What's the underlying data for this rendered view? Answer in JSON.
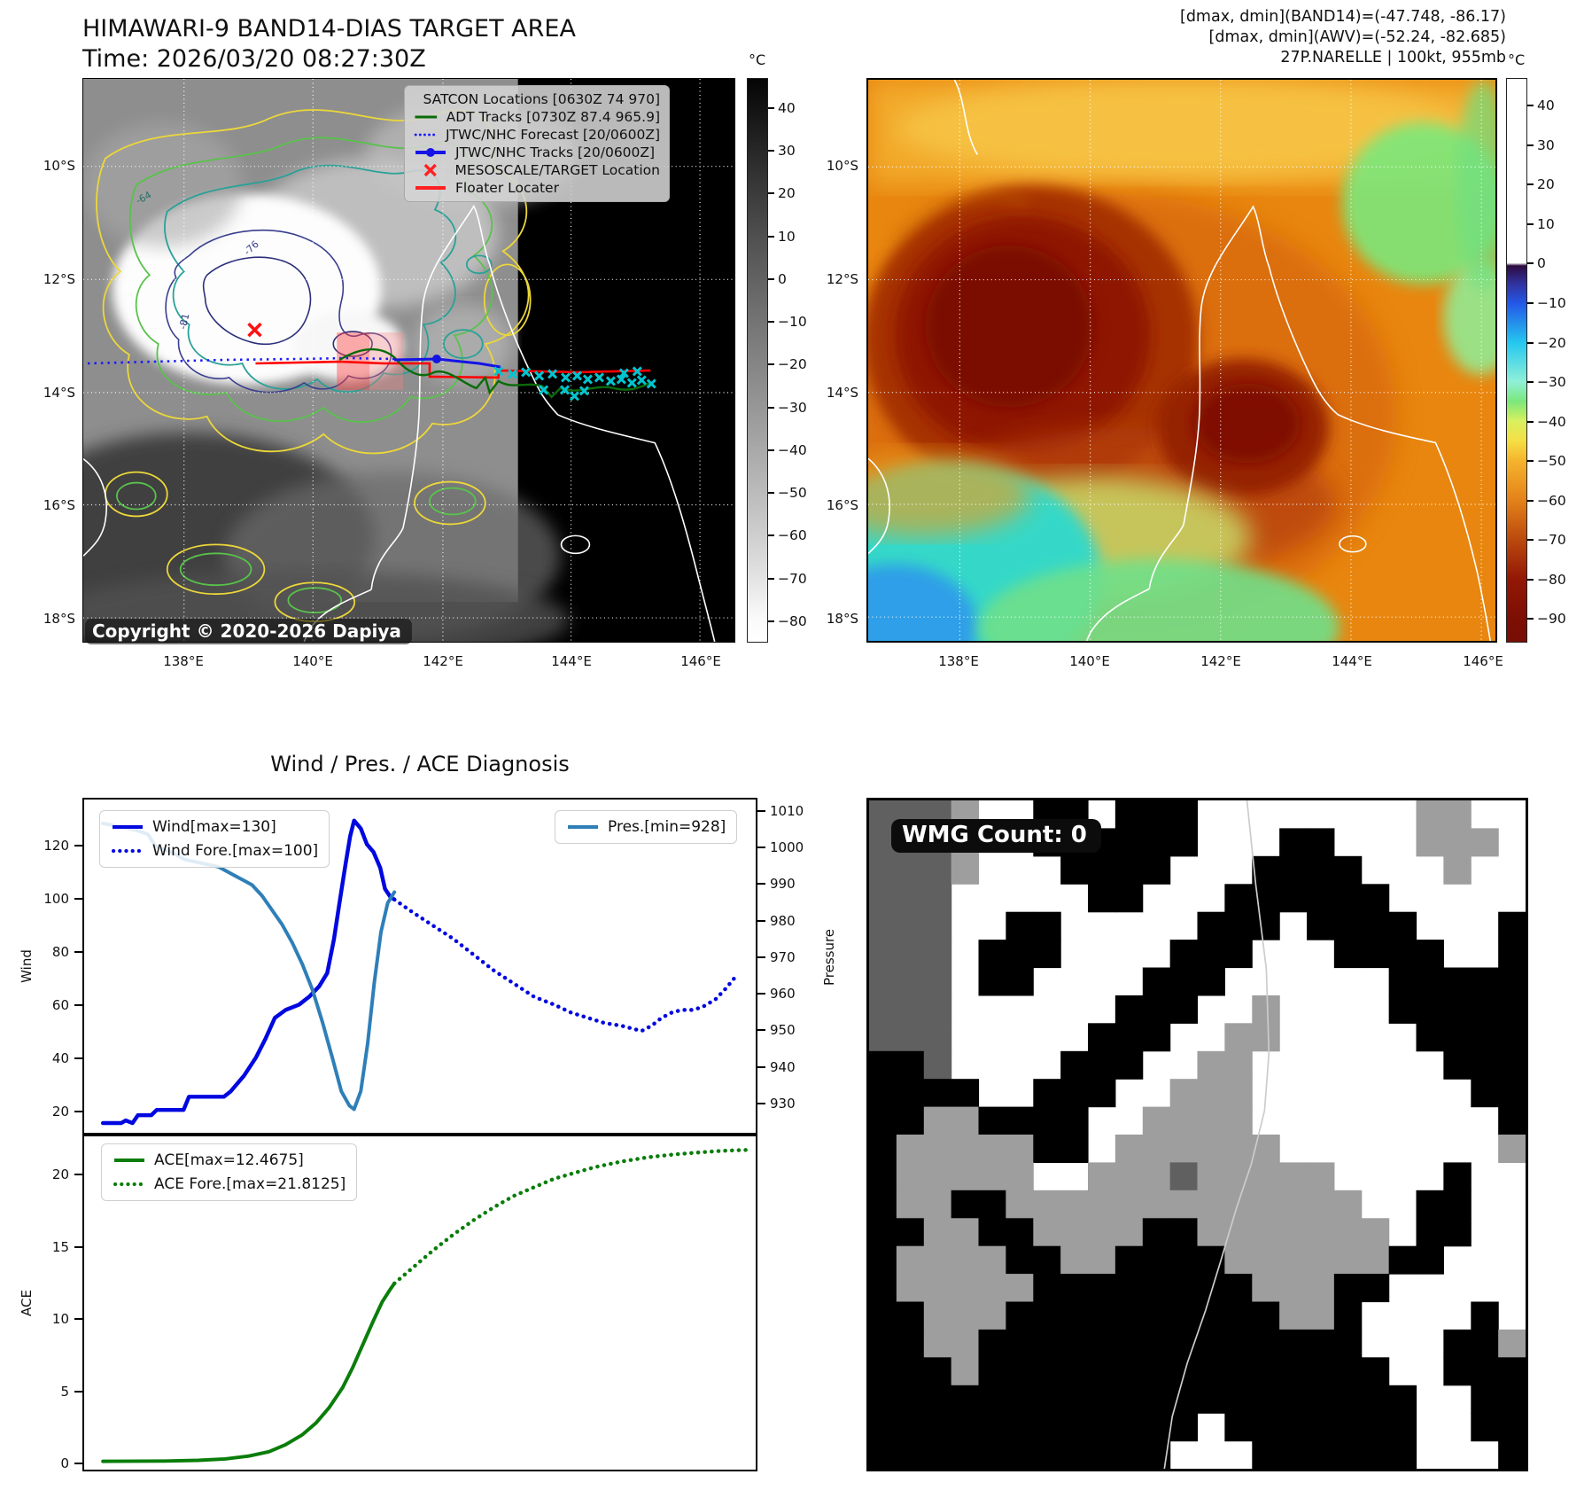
{
  "band14_panel": {
    "title": "HIMAWARI-9 BAND14-DIAS TARGET AREA",
    "time": "Time: 2026/03/20 08:27:30Z",
    "copyright": "Copyright © 2020-2026 Dapiya",
    "contour_labels": [
      "-64",
      "-76",
      "-81"
    ],
    "legend": [
      {
        "label": "SATCON Locations [0630Z 74 970]",
        "marker": "x",
        "color": "#00c5cf"
      },
      {
        "label": "ADT Tracks [0730Z 87.4 965.9]",
        "marker": "line",
        "color": "#0a6b0a"
      },
      {
        "label": "JTWC/NHC Forecast [20/0600Z]",
        "marker": "dotted",
        "color": "#1a1aff"
      },
      {
        "label": "JTWC/NHC Tracks [20/0600Z]",
        "marker": "line-dot",
        "color": "#1414e6"
      },
      {
        "label": "MESOSCALE/TARGET Location",
        "marker": "x",
        "color": "#ff2020"
      },
      {
        "label": "Floater Locater",
        "marker": "line",
        "color": "#ff2020"
      }
    ],
    "lat_ticks": [
      "10°S",
      "12°S",
      "14°S",
      "16°S",
      "18°S"
    ],
    "lon_ticks": [
      "138°E",
      "140°E",
      "142°E",
      "144°E",
      "146°E"
    ],
    "colorbar": {
      "unit": "°C",
      "ticks": [
        "40",
        "30",
        "20",
        "10",
        "0",
        "−10",
        "−20",
        "−30",
        "−40",
        "−50",
        "−60",
        "−70",
        "−80"
      ]
    }
  },
  "awv_panel": {
    "header_lines": [
      "[dmax, dmin](BAND14)=(-47.748, -86.17)",
      "[dmax, dmin](AWV)=(-52.24, -82.685)",
      "27P.NARELLE | 100kt, 955mb"
    ],
    "lat_ticks": [
      "10°S",
      "12°S",
      "14°S",
      "16°S",
      "18°S"
    ],
    "lon_ticks": [
      "138°E",
      "140°E",
      "142°E",
      "144°E",
      "146°E"
    ],
    "colorbar": {
      "unit": "°C",
      "ticks": [
        "40",
        "30",
        "20",
        "10",
        "0",
        "−10",
        "−20",
        "−30",
        "−40",
        "−50",
        "−60",
        "−70",
        "−80",
        "−90"
      ]
    }
  },
  "wmg_panel": {
    "count_label": "WMG Count: 0"
  },
  "chart_data": [
    {
      "type": "line",
      "title": "Wind / Pres. / ACE Diagnosis",
      "xlabel": "",
      "x_note": "x is normalized storm-lifetime time 0-1; no x tick labels are shown",
      "ylabel_left": "Wind",
      "ylabel_right": "Pressure",
      "ylim_left": [
        11.3,
        138
      ],
      "ylim_right": [
        921.5,
        1013.6
      ],
      "yticks_left": [
        20,
        40,
        60,
        80,
        100,
        120
      ],
      "yticks_right": [
        930,
        940,
        950,
        960,
        970,
        980,
        990,
        1000,
        1010
      ],
      "legend_left": [
        {
          "label": "Wind[max=130]",
          "marker": "line",
          "color": "#0008e0"
        },
        {
          "label": "Wind Fore.[max=100]",
          "marker": "dotted",
          "color": "#0008e0"
        }
      ],
      "legend_right": [
        {
          "label": "Pres.[min=928]",
          "marker": "line",
          "color": "#2e7fb8"
        }
      ],
      "series": [
        {
          "name": "Wind[max=130]",
          "axis": "left",
          "style": "solid",
          "color": "#0008e0",
          "width": 4.5,
          "points": [
            [
              0.028,
              15
            ],
            [
              0.055,
              15
            ],
            [
              0.062,
              16
            ],
            [
              0.072,
              15
            ],
            [
              0.08,
              18
            ],
            [
              0.1,
              18
            ],
            [
              0.108,
              20
            ],
            [
              0.148,
              20
            ],
            [
              0.156,
              25
            ],
            [
              0.208,
              25
            ],
            [
              0.218,
              27
            ],
            [
              0.238,
              33
            ],
            [
              0.256,
              40
            ],
            [
              0.27,
              47
            ],
            [
              0.284,
              55
            ],
            [
              0.3,
              58
            ],
            [
              0.32,
              60
            ],
            [
              0.335,
              63
            ],
            [
              0.35,
              67
            ],
            [
              0.362,
              72
            ],
            [
              0.372,
              85
            ],
            [
              0.381,
              100
            ],
            [
              0.389,
              113
            ],
            [
              0.396,
              124
            ],
            [
              0.402,
              130
            ],
            [
              0.412,
              127
            ],
            [
              0.421,
              121
            ],
            [
              0.431,
              118
            ],
            [
              0.441,
              112
            ],
            [
              0.448,
              104
            ],
            [
              0.456,
              101
            ],
            [
              0.462,
              100
            ]
          ]
        },
        {
          "name": "Wind Fore.[max=100]",
          "axis": "left",
          "style": "dotted",
          "color": "#0008e0",
          "width": 4.5,
          "points": [
            [
              0.462,
              100
            ],
            [
              0.49,
              95
            ],
            [
              0.52,
              90
            ],
            [
              0.55,
              85
            ],
            [
              0.58,
              79
            ],
            [
              0.61,
              73
            ],
            [
              0.64,
              68
            ],
            [
              0.67,
              63
            ],
            [
              0.7,
              60
            ],
            [
              0.725,
              57
            ],
            [
              0.75,
              55
            ],
            [
              0.775,
              53
            ],
            [
              0.8,
              52
            ],
            [
              0.815,
              51
            ],
            [
              0.83,
              50
            ],
            [
              0.845,
              52
            ],
            [
              0.86,
              55
            ],
            [
              0.875,
              57
            ],
            [
              0.89,
              58
            ],
            [
              0.905,
              58
            ],
            [
              0.92,
              59
            ],
            [
              0.94,
              62
            ],
            [
              0.955,
              66
            ],
            [
              0.968,
              70
            ]
          ]
        },
        {
          "name": "Pres.[min=928]",
          "axis": "right",
          "style": "solid",
          "color": "#2e7fb8",
          "width": 4,
          "points": [
            [
              0.028,
              1007
            ],
            [
              0.055,
              1006
            ],
            [
              0.08,
              1005
            ],
            [
              0.095,
              1004
            ],
            [
              0.105,
              1001
            ],
            [
              0.115,
              1000
            ],
            [
              0.13,
              999
            ],
            [
              0.15,
              997
            ],
            [
              0.175,
              996
            ],
            [
              0.2,
              995
            ],
            [
              0.22,
              993
            ],
            [
              0.24,
              991
            ],
            [
              0.25,
              990
            ],
            [
              0.265,
              987
            ],
            [
              0.28,
              983
            ],
            [
              0.295,
              979
            ],
            [
              0.31,
              974
            ],
            [
              0.325,
              968
            ],
            [
              0.34,
              961
            ],
            [
              0.355,
              952
            ],
            [
              0.37,
              942
            ],
            [
              0.383,
              933
            ],
            [
              0.395,
              929
            ],
            [
              0.402,
              928
            ],
            [
              0.412,
              933
            ],
            [
              0.422,
              946
            ],
            [
              0.432,
              963
            ],
            [
              0.442,
              977
            ],
            [
              0.452,
              985
            ],
            [
              0.462,
              988
            ]
          ]
        }
      ]
    },
    {
      "type": "line",
      "ylabel_left": "ACE",
      "ylim_left": [
        -0.55,
        22.76
      ],
      "yticks_left": [
        0,
        5,
        10,
        15,
        20
      ],
      "legend_left": [
        {
          "label": "ACE[max=12.4675]",
          "marker": "line",
          "color": "#0a7d0a"
        },
        {
          "label": "ACE Fore.[max=21.8125]",
          "marker": "dotted",
          "color": "#0a7d0a"
        }
      ],
      "series": [
        {
          "name": "ACE[max=12.4675]",
          "axis": "left",
          "style": "solid",
          "color": "#0a7d0a",
          "width": 4,
          "points": [
            [
              0.028,
              0.03
            ],
            [
              0.12,
              0.05
            ],
            [
              0.17,
              0.1
            ],
            [
              0.21,
              0.2
            ],
            [
              0.245,
              0.4
            ],
            [
              0.275,
              0.7
            ],
            [
              0.3,
              1.2
            ],
            [
              0.325,
              1.9
            ],
            [
              0.345,
              2.7
            ],
            [
              0.365,
              3.8
            ],
            [
              0.385,
              5.2
            ],
            [
              0.4,
              6.6
            ],
            [
              0.415,
              8.2
            ],
            [
              0.43,
              9.8
            ],
            [
              0.444,
              11.2
            ],
            [
              0.455,
              12.0
            ],
            [
              0.462,
              12.47
            ]
          ]
        },
        {
          "name": "ACE Fore.[max=21.8125]",
          "axis": "left",
          "style": "dotted",
          "color": "#0a7d0a",
          "width": 4.5,
          "points": [
            [
              0.462,
              12.47
            ],
            [
              0.49,
              13.6
            ],
            [
              0.52,
              14.8
            ],
            [
              0.55,
              15.9
            ],
            [
              0.58,
              16.9
            ],
            [
              0.61,
              17.8
            ],
            [
              0.64,
              18.6
            ],
            [
              0.67,
              19.2
            ],
            [
              0.7,
              19.8
            ],
            [
              0.73,
              20.2
            ],
            [
              0.76,
              20.6
            ],
            [
              0.8,
              21.0
            ],
            [
              0.84,
              21.3
            ],
            [
              0.88,
              21.5
            ],
            [
              0.92,
              21.65
            ],
            [
              0.95,
              21.75
            ],
            [
              0.985,
              21.81
            ]
          ]
        }
      ]
    }
  ]
}
